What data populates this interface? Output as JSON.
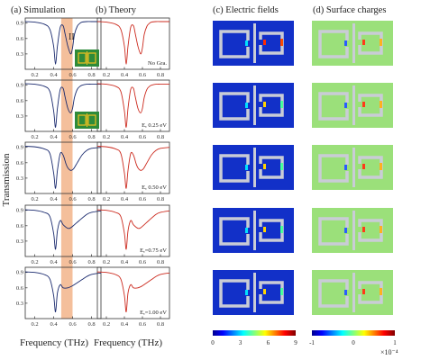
{
  "panel_titles": {
    "a": "(a) Simulation",
    "b": "(b) Theory",
    "c": "(c) Electric fields",
    "d": "(d) Surface charges"
  },
  "y_label": "Transmission",
  "x_label_a": "Frequency (THz)",
  "x_label_b": "Frequency (THz)",
  "region_label": "II",
  "row_labels": [
    "No Gra.",
    "Eₑ  0.25 eV",
    "Eₑ  0.50 eV",
    "Eₑ=0.75 eV",
    "Eₑ=1.00 eV"
  ],
  "field_colorbar": {
    "ticks": [
      "0",
      "3",
      "6",
      "9"
    ]
  },
  "charge_colorbar": {
    "ticks": [
      "-1",
      "0",
      "1"
    ],
    "multiplier": "×10⁻⁴"
  },
  "colors": {
    "sim_curve": "#1a2a6e",
    "theory_curve": "#cc2b1f",
    "band": "#f2b48a",
    "field_bg": "#1230c8",
    "charge_bg": "#9be07a",
    "inset_bg": "#2e8b3a",
    "inset_line": "#f0c020"
  },
  "chart_data": [
    {
      "type": "line",
      "title": "(a) Simulation",
      "xlabel": "Frequency (THz)",
      "ylabel": "Transmission",
      "xlim": [
        0.1,
        0.9
      ],
      "x_ticks": [
        "0.2",
        "0.4",
        "0.6",
        "0.8"
      ],
      "y_ticks": [
        "0.3",
        "0.6",
        "0.9"
      ],
      "band_x": [
        0.48,
        0.6
      ],
      "panels": [
        {
          "x": [
            0.1,
            0.2,
            0.3,
            0.36,
            0.4,
            0.42,
            0.44,
            0.47,
            0.5,
            0.52,
            0.55,
            0.58,
            0.6,
            0.62,
            0.65,
            0.68,
            0.7,
            0.75,
            0.8,
            0.9
          ],
          "y": [
            0.93,
            0.92,
            0.88,
            0.78,
            0.45,
            0.1,
            0.45,
            0.82,
            0.85,
            0.7,
            0.45,
            0.3,
            0.42,
            0.68,
            0.84,
            0.9,
            0.92,
            0.93,
            0.93,
            0.93
          ]
        },
        {
          "x": [
            0.1,
            0.2,
            0.3,
            0.36,
            0.4,
            0.42,
            0.44,
            0.47,
            0.5,
            0.52,
            0.55,
            0.58,
            0.6,
            0.62,
            0.65,
            0.68,
            0.7,
            0.75,
            0.8,
            0.9
          ],
          "y": [
            0.93,
            0.92,
            0.88,
            0.78,
            0.4,
            0.08,
            0.45,
            0.82,
            0.84,
            0.68,
            0.45,
            0.36,
            0.45,
            0.66,
            0.82,
            0.88,
            0.9,
            0.92,
            0.92,
            0.92
          ]
        },
        {
          "x": [
            0.1,
            0.2,
            0.3,
            0.36,
            0.4,
            0.42,
            0.44,
            0.47,
            0.5,
            0.53,
            0.55,
            0.58,
            0.61,
            0.65,
            0.7,
            0.75,
            0.8,
            0.9
          ],
          "y": [
            0.92,
            0.91,
            0.87,
            0.78,
            0.4,
            0.1,
            0.45,
            0.78,
            0.75,
            0.58,
            0.5,
            0.45,
            0.48,
            0.6,
            0.75,
            0.84,
            0.88,
            0.9
          ]
        },
        {
          "x": [
            0.1,
            0.2,
            0.3,
            0.36,
            0.4,
            0.42,
            0.44,
            0.47,
            0.5,
            0.55,
            0.58,
            0.62,
            0.67,
            0.75,
            0.8,
            0.9
          ],
          "y": [
            0.91,
            0.9,
            0.86,
            0.78,
            0.45,
            0.14,
            0.5,
            0.7,
            0.62,
            0.55,
            0.56,
            0.62,
            0.7,
            0.82,
            0.86,
            0.89
          ]
        },
        {
          "x": [
            0.1,
            0.2,
            0.3,
            0.36,
            0.4,
            0.42,
            0.44,
            0.47,
            0.5,
            0.55,
            0.6,
            0.65,
            0.7,
            0.75,
            0.8,
            0.9
          ],
          "y": [
            0.91,
            0.9,
            0.86,
            0.77,
            0.45,
            0.13,
            0.5,
            0.66,
            0.6,
            0.6,
            0.64,
            0.7,
            0.76,
            0.82,
            0.86,
            0.89
          ]
        }
      ]
    },
    {
      "type": "line",
      "title": "(b) Theory",
      "xlabel": "Frequency (THz)",
      "xlim": [
        0.1,
        0.9
      ],
      "x_ticks": [
        "0.2",
        "0.4",
        "0.6",
        "0.8"
      ],
      "panels": [
        {
          "x": [
            0.1,
            0.2,
            0.3,
            0.36,
            0.4,
            0.42,
            0.44,
            0.47,
            0.5,
            0.52,
            0.55,
            0.58,
            0.6,
            0.62,
            0.65,
            0.68,
            0.7,
            0.75,
            0.8,
            0.9
          ],
          "y": [
            0.93,
            0.92,
            0.88,
            0.78,
            0.45,
            0.1,
            0.45,
            0.82,
            0.85,
            0.7,
            0.45,
            0.3,
            0.42,
            0.68,
            0.84,
            0.9,
            0.92,
            0.93,
            0.93,
            0.93
          ]
        },
        {
          "x": [
            0.1,
            0.2,
            0.3,
            0.36,
            0.4,
            0.42,
            0.44,
            0.47,
            0.5,
            0.52,
            0.55,
            0.58,
            0.6,
            0.62,
            0.65,
            0.68,
            0.7,
            0.75,
            0.8,
            0.9
          ],
          "y": [
            0.93,
            0.92,
            0.88,
            0.78,
            0.4,
            0.08,
            0.45,
            0.82,
            0.84,
            0.68,
            0.45,
            0.36,
            0.45,
            0.66,
            0.82,
            0.88,
            0.9,
            0.92,
            0.92,
            0.92
          ]
        },
        {
          "x": [
            0.1,
            0.2,
            0.3,
            0.36,
            0.4,
            0.42,
            0.44,
            0.47,
            0.5,
            0.53,
            0.55,
            0.58,
            0.61,
            0.65,
            0.7,
            0.75,
            0.8,
            0.9
          ],
          "y": [
            0.92,
            0.91,
            0.87,
            0.78,
            0.4,
            0.1,
            0.45,
            0.78,
            0.75,
            0.58,
            0.5,
            0.45,
            0.48,
            0.6,
            0.75,
            0.84,
            0.88,
            0.9
          ]
        },
        {
          "x": [
            0.1,
            0.2,
            0.3,
            0.36,
            0.4,
            0.42,
            0.44,
            0.47,
            0.5,
            0.55,
            0.58,
            0.62,
            0.67,
            0.75,
            0.8,
            0.9
          ],
          "y": [
            0.91,
            0.9,
            0.86,
            0.78,
            0.45,
            0.14,
            0.5,
            0.7,
            0.62,
            0.55,
            0.56,
            0.62,
            0.7,
            0.82,
            0.86,
            0.89
          ]
        },
        {
          "x": [
            0.1,
            0.2,
            0.3,
            0.36,
            0.4,
            0.42,
            0.44,
            0.47,
            0.5,
            0.55,
            0.6,
            0.65,
            0.7,
            0.75,
            0.8,
            0.9
          ],
          "y": [
            0.91,
            0.9,
            0.86,
            0.77,
            0.45,
            0.13,
            0.5,
            0.66,
            0.6,
            0.6,
            0.64,
            0.7,
            0.76,
            0.82,
            0.86,
            0.89
          ]
        }
      ]
    }
  ]
}
